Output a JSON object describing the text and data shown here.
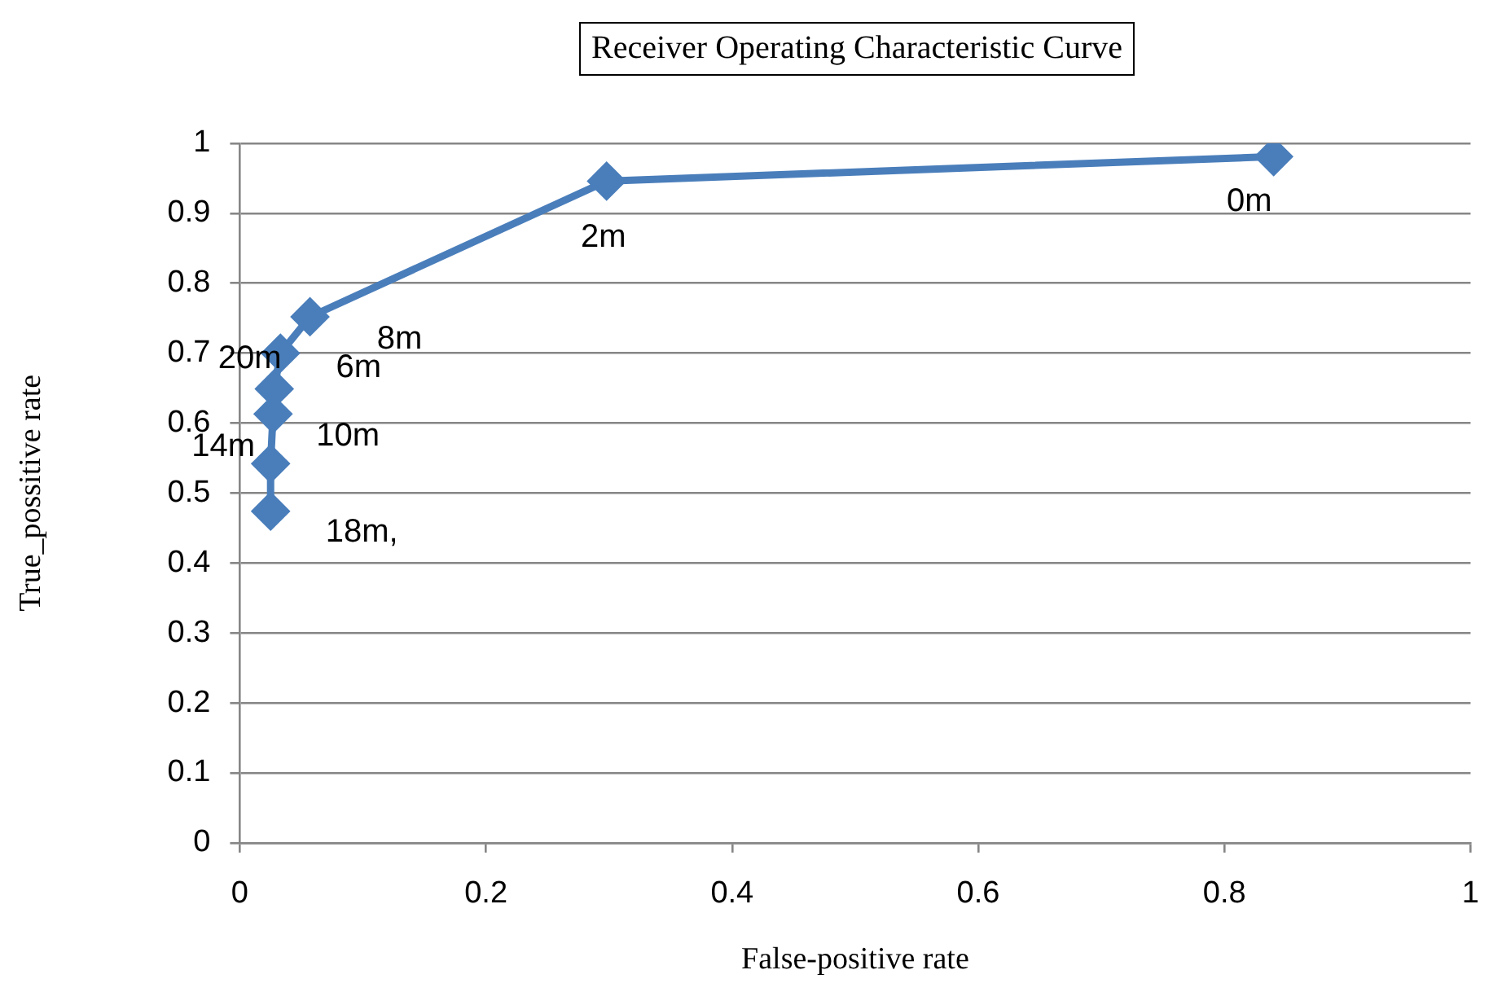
{
  "chart_data": {
    "type": "line",
    "title": "Receiver Operating Characteristic Curve",
    "xlabel": "False-positive rate",
    "ylabel": "True_possitive rate",
    "x": [
      0.84,
      0.298,
      0.057,
      0.033,
      0.028,
      0.027,
      0.025,
      0.025
    ],
    "series": [
      {
        "color": "#4a7ebb",
        "values": [
          0.981,
          0.946,
          0.752,
          0.7,
          0.649,
          0.613,
          0.542,
          0.474
        ]
      }
    ],
    "xlim": [
      0,
      1
    ],
    "xticks": [
      0,
      0.2,
      0.4,
      0.6,
      0.8,
      1
    ],
    "ylim": [
      0,
      1
    ],
    "yticks": [
      0,
      0.1,
      0.2,
      0.3,
      0.4,
      0.5,
      0.6,
      0.7,
      0.8,
      0.9,
      1
    ],
    "grid": "y",
    "legend": false,
    "marker": "diamond",
    "line_style": "solid",
    "annotations": [
      {
        "text": "0m",
        "x": 0.84,
        "y": 0.981
      },
      {
        "text": "2m",
        "x": 0.298,
        "y": 0.946
      },
      {
        "text": "8m",
        "x": 0.057,
        "y": 0.752
      },
      {
        "text": "6m",
        "x": 0.033,
        "y": 0.7
      },
      {
        "text": "20m",
        "x": 0.028,
        "y": 0.649
      },
      {
        "text": "10m",
        "x": 0.027,
        "y": 0.613
      },
      {
        "text": "14m",
        "x": 0.025,
        "y": 0.542
      },
      {
        "text": "18m,",
        "x": 0.025,
        "y": 0.474
      }
    ]
  }
}
